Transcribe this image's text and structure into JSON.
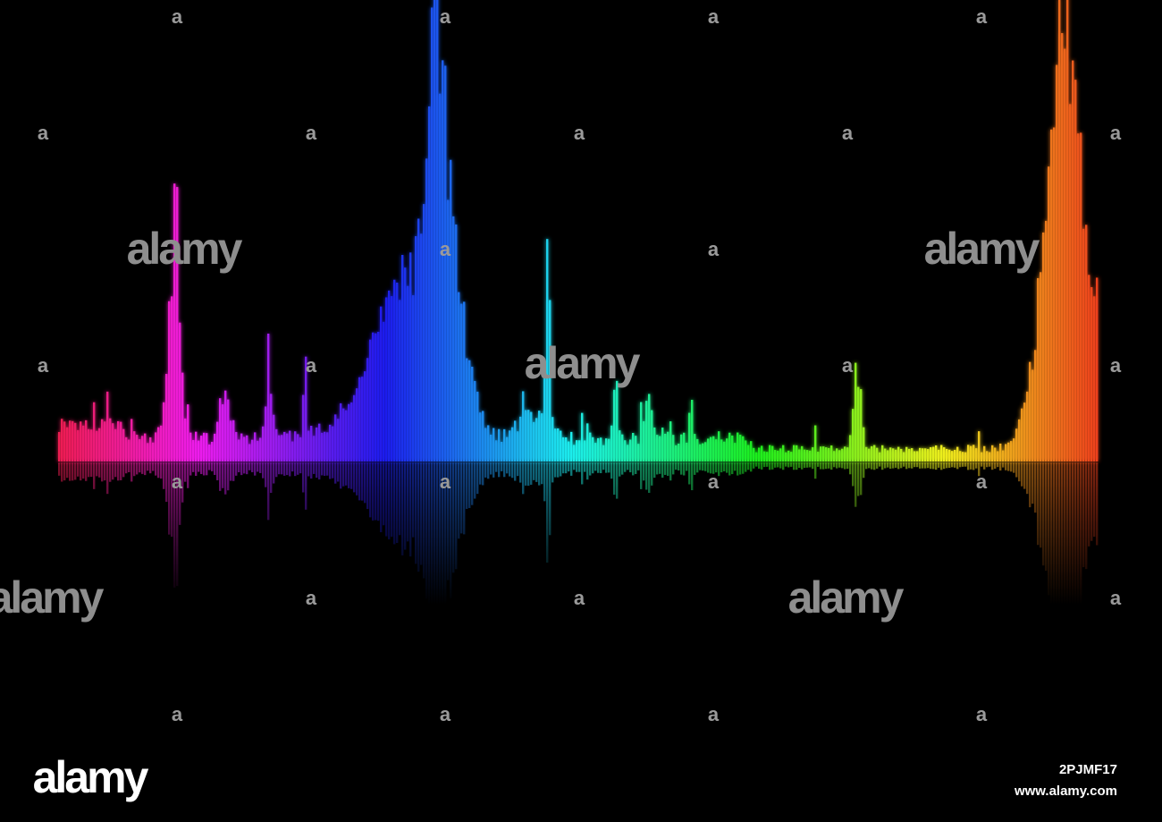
{
  "watermark_logo": "alamy",
  "watermark_mark": "a",
  "footer_logo": "alamy",
  "image_id": "2PJMF17",
  "website": "www.alamy.com"
}
